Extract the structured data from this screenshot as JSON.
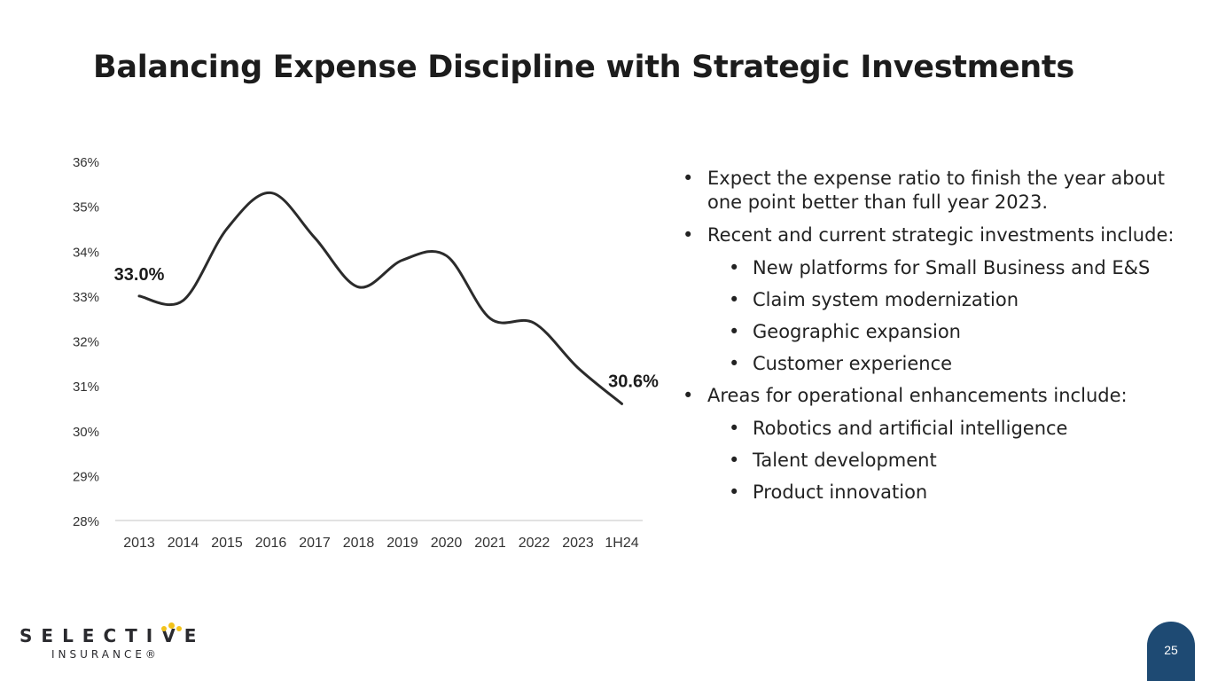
{
  "title": "Balancing Expense Discipline with Strategic Investments",
  "chart_data": {
    "type": "line",
    "categories": [
      "2013",
      "2014",
      "2015",
      "2016",
      "2017",
      "2018",
      "2019",
      "2020",
      "2021",
      "2022",
      "2023",
      "1H24"
    ],
    "values": [
      33.0,
      32.9,
      34.5,
      35.3,
      34.3,
      33.2,
      33.8,
      33.9,
      32.5,
      32.4,
      31.4,
      30.6
    ],
    "ylim": [
      28,
      36
    ],
    "yticks": [
      "28%",
      "29%",
      "30%",
      "31%",
      "32%",
      "33%",
      "34%",
      "35%",
      "36%"
    ],
    "data_labels": {
      "first": "33.0%",
      "last": "30.6%"
    },
    "smooth": true,
    "grid": false,
    "line_color": "#2b2b2b"
  },
  "bullets": [
    {
      "text": "Expect the expense ratio to finish the year about one point better than full year 2023.",
      "children": []
    },
    {
      "text": "Recent and current strategic investments include:",
      "children": [
        "New platforms for Small Business and E&S",
        "Claim system modernization",
        "Geographic expansion",
        "Customer experience"
      ]
    },
    {
      "text": "Areas for operational enhancements include:",
      "children": [
        "Robotics and artificial intelligence",
        "Talent development",
        "Product innovation"
      ]
    }
  ],
  "logo": {
    "line1": "SELECTIVE",
    "line2": "INSURANCE®",
    "dot_color": "#f2c21b"
  },
  "page_number": "25"
}
